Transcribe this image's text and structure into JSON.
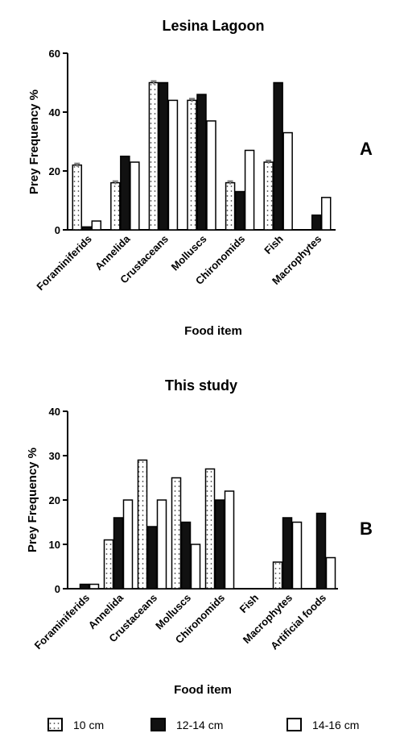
{
  "chart_data": [
    {
      "type": "bar",
      "title": "Lesina Lagoon",
      "panel_label": "A",
      "xlabel": "Food item",
      "ylabel": "Prey Frequency %",
      "ylim": [
        0,
        60
      ],
      "yticks": [
        0,
        20,
        40,
        60
      ],
      "grid": false,
      "categories": [
        "Foraminiferids",
        "Annelida",
        "Crustaceans",
        "Molluscs",
        "Chironomids",
        "Fish",
        "Macrophytes"
      ],
      "series": [
        {
          "name": "10 cm",
          "values": [
            22,
            16,
            50,
            44,
            16,
            23,
            0
          ]
        },
        {
          "name": "12-14 cm",
          "values": [
            1,
            25,
            50,
            46,
            13,
            50,
            5
          ]
        },
        {
          "name": "14-16 cm",
          "values": [
            3,
            23,
            44,
            37,
            27,
            33,
            11
          ]
        }
      ]
    },
    {
      "type": "bar",
      "title": "This study",
      "panel_label": "B",
      "xlabel": "Food item",
      "ylabel": "Prey Frequency %",
      "ylim": [
        0,
        40
      ],
      "yticks": [
        0,
        10,
        20,
        30,
        40
      ],
      "grid": false,
      "categories": [
        "Foraminiferids",
        "Annelida",
        "Crustaceans",
        "Molluscs",
        "Chironomids",
        "Fish",
        "Macrophytes",
        "Artificial foods"
      ],
      "series": [
        {
          "name": "10 cm",
          "values": [
            0,
            11,
            29,
            25,
            27,
            0,
            6,
            0
          ]
        },
        {
          "name": "12-14 cm",
          "values": [
            1,
            16,
            14,
            15,
            20,
            0,
            16,
            17
          ]
        },
        {
          "name": "14-16 cm",
          "values": [
            1,
            20,
            20,
            10,
            22,
            0,
            15,
            7
          ]
        }
      ]
    }
  ],
  "legend": {
    "position": "bottom",
    "items": [
      {
        "label": "10 cm",
        "style": "dotted"
      },
      {
        "label": "12-14 cm",
        "style": "black"
      },
      {
        "label": "14-16 cm",
        "style": "white"
      }
    ]
  },
  "colors": {
    "dotted_fill": "#ffffff",
    "dot_color": "#444444",
    "black_fill": "#111111",
    "white_fill": "#ffffff",
    "stroke": "#000000",
    "error_bar": "#777777"
  }
}
